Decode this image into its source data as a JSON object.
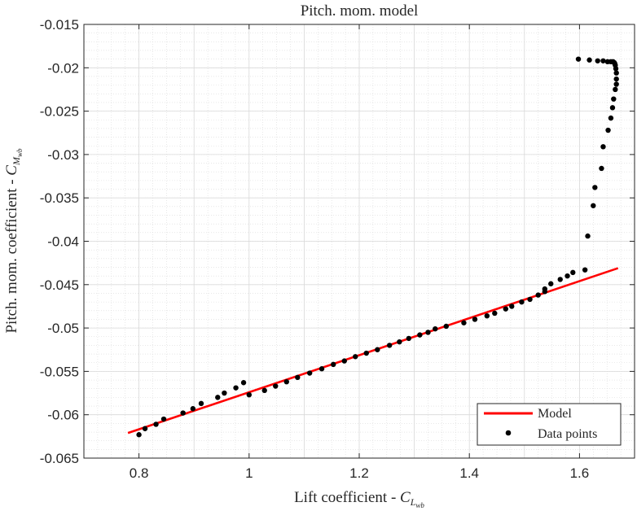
{
  "chart_data": {
    "type": "scatter",
    "title": "Pitch. mom. model",
    "xlabel": "Lift coefficient - ",
    "xlabel_symbol": "C",
    "xlabel_sub": "L",
    "xlabel_subsub": "wb",
    "ylabel": "Pitch.  mom.  coefficient - ",
    "ylabel_symbol": "C",
    "ylabel_sub": "M",
    "ylabel_subsub": "wb",
    "xlim": [
      0.7,
      1.7
    ],
    "ylim": [
      -0.065,
      -0.015
    ],
    "xticks": [
      0.8,
      1,
      1.2,
      1.4,
      1.6
    ],
    "xtick_labels": [
      "0.8",
      "1",
      "1.2",
      "1.4",
      "1.6"
    ],
    "yticks": [
      -0.065,
      -0.06,
      -0.055,
      -0.05,
      -0.045,
      -0.04,
      -0.035,
      -0.03,
      -0.025,
      -0.02,
      -0.015
    ],
    "ytick_labels": [
      "-0.065",
      "-0.06",
      "-0.055",
      "-0.05",
      "-0.045",
      "-0.04",
      "-0.035",
      "-0.03",
      "-0.025",
      "-0.02",
      "-0.015"
    ],
    "grid": "major and minor",
    "legend_placement": "bottom-right",
    "colors": {
      "model": "#ff0000",
      "points": "#000000",
      "grid": "#d9d9d9",
      "axes": "#262626"
    },
    "series": [
      {
        "name": "Model",
        "kind": "line",
        "x": [
          0.78,
          1.67
        ],
        "y": [
          -0.0621,
          -0.0431
        ]
      },
      {
        "name": "Data points",
        "kind": "scatter",
        "x": [
          0.8,
          0.811,
          0.831,
          0.845,
          0.88,
          0.898,
          0.913,
          0.943,
          0.955,
          0.976,
          0.99,
          1.0,
          1.028,
          1.048,
          1.068,
          1.088,
          1.11,
          1.132,
          1.153,
          1.173,
          1.193,
          1.213,
          1.233,
          1.255,
          1.273,
          1.29,
          1.31,
          1.325,
          1.338,
          1.358,
          1.39,
          1.41,
          1.432,
          1.446,
          1.466,
          1.477,
          1.495,
          1.51,
          1.525,
          1.537,
          1.548,
          1.565,
          1.578,
          1.588,
          1.61,
          1.537,
          1.615,
          1.625,
          1.628,
          1.64,
          1.643,
          1.652,
          1.657,
          1.66,
          1.662,
          1.665,
          1.667,
          1.667,
          1.667,
          1.666,
          1.665,
          1.664,
          1.663,
          1.661,
          1.657,
          1.651,
          1.643,
          1.633,
          1.618,
          1.598
        ],
        "y": [
          -0.0623,
          -0.0616,
          -0.0611,
          -0.0605,
          -0.0598,
          -0.0593,
          -0.0587,
          -0.058,
          -0.0575,
          -0.0569,
          -0.0563,
          -0.0577,
          -0.0572,
          -0.0567,
          -0.0562,
          -0.0557,
          -0.0552,
          -0.0547,
          -0.0542,
          -0.0538,
          -0.0533,
          -0.0529,
          -0.0525,
          -0.052,
          -0.0516,
          -0.0512,
          -0.0508,
          -0.0505,
          -0.0501,
          -0.0498,
          -0.0494,
          -0.049,
          -0.0486,
          -0.0483,
          -0.0478,
          -0.0475,
          -0.047,
          -0.0467,
          -0.0462,
          -0.0458,
          -0.0449,
          -0.0444,
          -0.044,
          -0.0436,
          -0.0433,
          -0.0455,
          -0.0394,
          -0.0359,
          -0.0338,
          -0.0316,
          -0.0291,
          -0.0272,
          -0.0258,
          -0.0246,
          -0.0236,
          -0.0225,
          -0.0219,
          -0.0213,
          -0.0206,
          -0.0201,
          -0.0197,
          -0.0195,
          -0.0194,
          -0.0193,
          -0.0193,
          -0.0193,
          -0.0192,
          -0.0192,
          -0.0191,
          -0.019
        ]
      }
    ]
  }
}
